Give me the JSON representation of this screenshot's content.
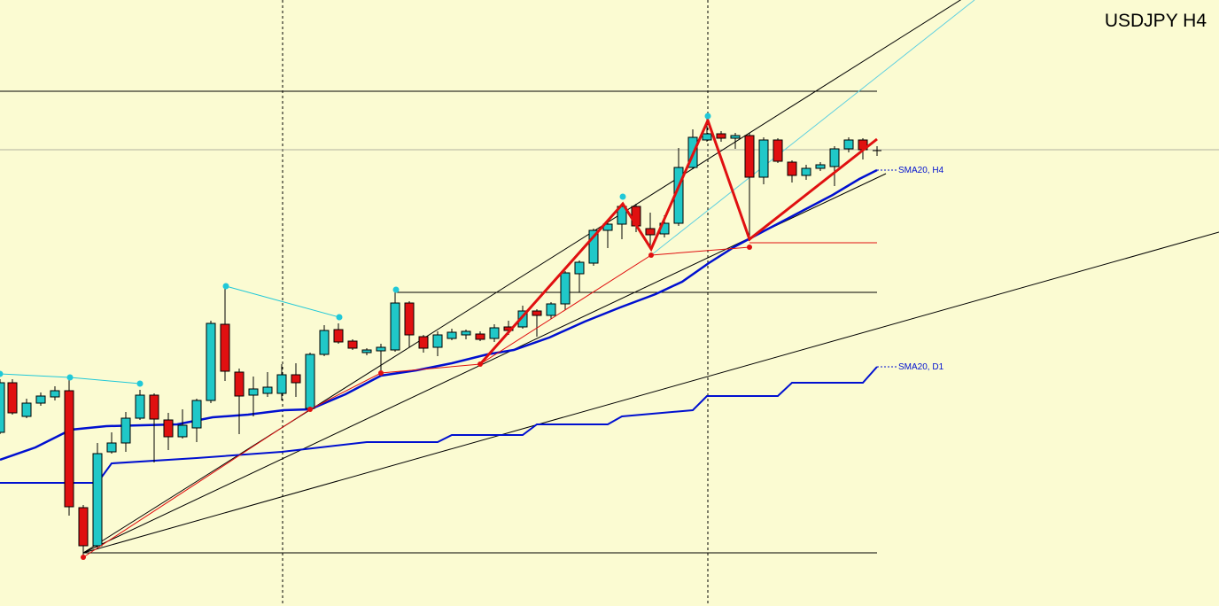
{
  "header": {
    "title": "USDJPY H4"
  },
  "indicators": [
    {
      "label": "SMA20, H4"
    },
    {
      "label": "SMA20, D1"
    }
  ]
}
